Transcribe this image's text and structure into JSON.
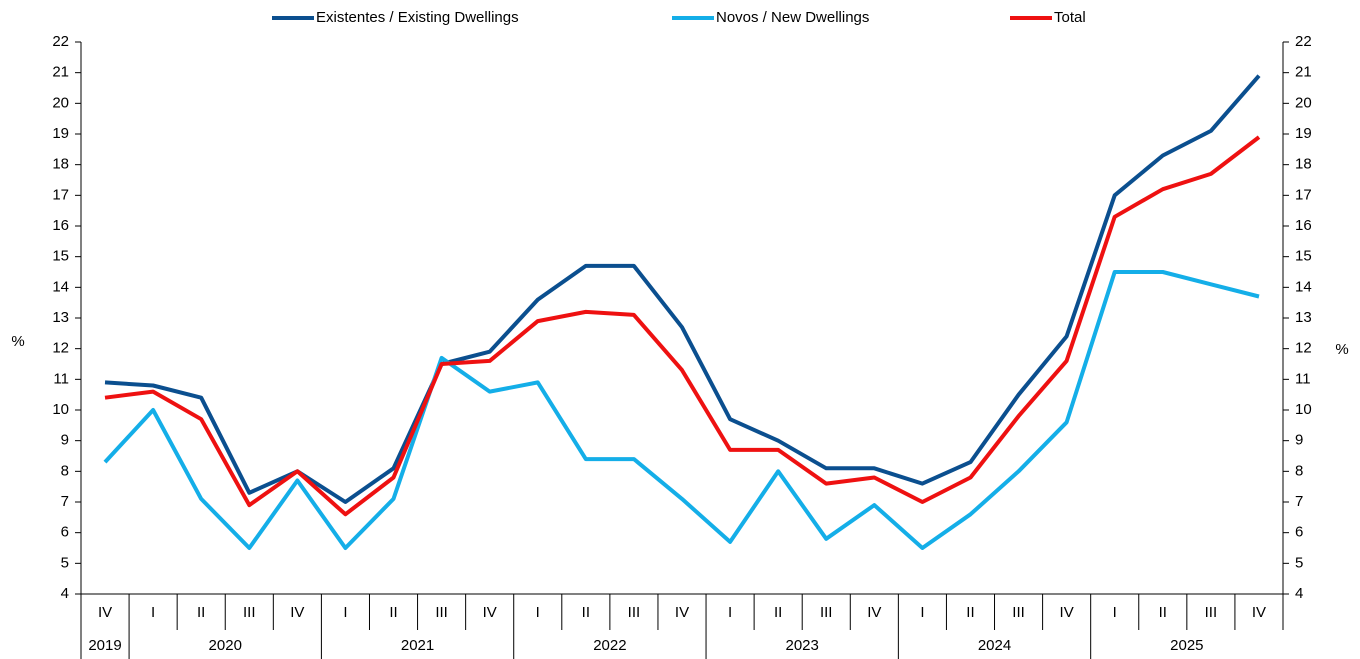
{
  "chart_data": {
    "type": "line",
    "categories": [
      "IV",
      "I",
      "II",
      "III",
      "IV",
      "I",
      "II",
      "III",
      "IV",
      "I",
      "II",
      "III",
      "IV",
      "I",
      "II",
      "III",
      "IV",
      "I",
      "II",
      "III",
      "IV",
      "I",
      "II",
      "III",
      "IV"
    ],
    "years": [
      "2019",
      "2020",
      "2021",
      "2022",
      "2023",
      "2024",
      "2025"
    ],
    "ylabel": "%",
    "y2label": "%",
    "ylim": [
      4,
      22
    ],
    "yticks": [
      4,
      5,
      6,
      7,
      8,
      9,
      10,
      11,
      12,
      13,
      14,
      15,
      16,
      17,
      18,
      19,
      20,
      21,
      22
    ],
    "y2lim": [
      4,
      22
    ],
    "y2ticks": [
      4,
      5,
      6,
      7,
      8,
      9,
      10,
      11,
      12,
      13,
      14,
      15,
      16,
      17,
      18,
      19,
      20,
      21,
      22
    ],
    "series": [
      {
        "name": "Existentes / Existing Dwellings",
        "color": "#0b4f8f",
        "values": [
          10.9,
          10.8,
          10.4,
          7.3,
          8.0,
          7.0,
          8.1,
          11.5,
          11.9,
          13.6,
          14.7,
          14.7,
          12.7,
          9.7,
          9.0,
          8.1,
          8.1,
          7.6,
          8.3,
          10.5,
          12.4,
          17.0,
          18.3,
          19.1,
          20.9
        ]
      },
      {
        "name": "Novos / New Dwellings",
        "color": "#14aee8",
        "values": [
          8.3,
          10.0,
          7.1,
          5.5,
          7.7,
          5.5,
          7.1,
          11.7,
          10.6,
          10.9,
          8.4,
          8.4,
          7.1,
          5.7,
          8.0,
          5.8,
          6.9,
          5.5,
          6.6,
          8.0,
          9.6,
          14.5,
          14.5,
          14.1,
          13.7
        ]
      },
      {
        "name": "Total",
        "color": "#ee1111",
        "values": [
          10.4,
          10.6,
          9.7,
          6.9,
          8.0,
          6.6,
          7.8,
          11.5,
          11.6,
          12.9,
          13.2,
          13.1,
          11.3,
          8.7,
          8.7,
          7.6,
          7.8,
          7.0,
          7.8,
          9.8,
          11.6,
          16.3,
          17.2,
          17.7,
          18.9
        ]
      }
    ]
  }
}
